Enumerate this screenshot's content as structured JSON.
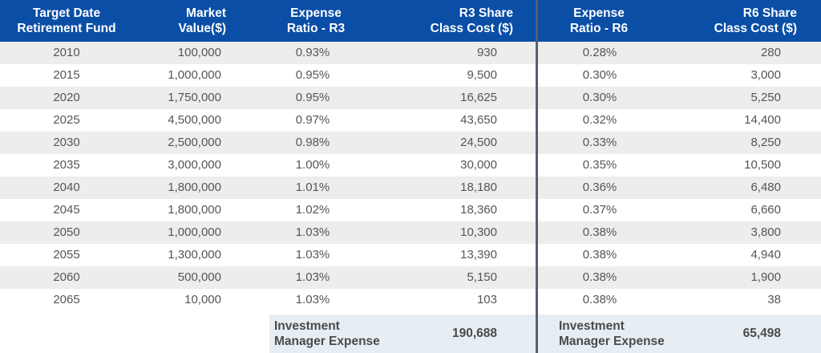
{
  "header": {
    "col1_line1": "Target Date",
    "col1_line2": "Retirement Fund",
    "col2_line1": "Market",
    "col2_line2": "Value($)",
    "col3_line1": "Expense",
    "col3_line2": "Ratio - R3",
    "col4_line1": "R3 Share",
    "col4_line2": "Class Cost ($)",
    "col5_line1": "Expense",
    "col5_line2": "Ratio - R6",
    "col6_line1": "R6 Share",
    "col6_line2": "Class Cost ($)"
  },
  "rows": [
    {
      "fund": "2010",
      "market_value": "100,000",
      "ratio_r3": "0.93%",
      "cost_r3": "930",
      "ratio_r6": "0.28%",
      "cost_r6": "280"
    },
    {
      "fund": "2015",
      "market_value": "1,000,000",
      "ratio_r3": "0.95%",
      "cost_r3": "9,500",
      "ratio_r6": "0.30%",
      "cost_r6": "3,000"
    },
    {
      "fund": "2020",
      "market_value": "1,750,000",
      "ratio_r3": "0.95%",
      "cost_r3": "16,625",
      "ratio_r6": "0.30%",
      "cost_r6": "5,250"
    },
    {
      "fund": "2025",
      "market_value": "4,500,000",
      "ratio_r3": "0.97%",
      "cost_r3": "43,650",
      "ratio_r6": "0.32%",
      "cost_r6": "14,400"
    },
    {
      "fund": "2030",
      "market_value": "2,500,000",
      "ratio_r3": "0.98%",
      "cost_r3": "24,500",
      "ratio_r6": "0.33%",
      "cost_r6": "8,250"
    },
    {
      "fund": "2035",
      "market_value": "3,000,000",
      "ratio_r3": "1.00%",
      "cost_r3": "30,000",
      "ratio_r6": "0.35%",
      "cost_r6": "10,500"
    },
    {
      "fund": "2040",
      "market_value": "1,800,000",
      "ratio_r3": "1.01%",
      "cost_r3": "18,180",
      "ratio_r6": "0.36%",
      "cost_r6": "6,480"
    },
    {
      "fund": "2045",
      "market_value": "1,800,000",
      "ratio_r3": "1.02%",
      "cost_r3": "18,360",
      "ratio_r6": "0.37%",
      "cost_r6": "6,660"
    },
    {
      "fund": "2050",
      "market_value": "1,000,000",
      "ratio_r3": "1.03%",
      "cost_r3": "10,300",
      "ratio_r6": "0.38%",
      "cost_r6": "3,800"
    },
    {
      "fund": "2055",
      "market_value": "1,300,000",
      "ratio_r3": "1.03%",
      "cost_r3": "13,390",
      "ratio_r6": "0.38%",
      "cost_r6": "4,940"
    },
    {
      "fund": "2060",
      "market_value": "500,000",
      "ratio_r3": "1.03%",
      "cost_r3": "5,150",
      "ratio_r6": "0.38%",
      "cost_r6": "1,900"
    },
    {
      "fund": "2065",
      "market_value": "10,000",
      "ratio_r3": "1.03%",
      "cost_r3": "103",
      "ratio_r6": "0.38%",
      "cost_r6": "38"
    }
  ],
  "totals": {
    "r3_label_line1": "Investment",
    "r3_label_line2": "Manager Expense",
    "r3_value": "190,688",
    "r6_label_line1": "Investment",
    "r6_label_line2": "Manager Expense",
    "r6_value": "65,498"
  },
  "colors": {
    "header_bg": "#0a4ea6",
    "row_alt_bg": "#efedeb",
    "totals_bg": "#e6eef4",
    "divider": "#54606e"
  }
}
